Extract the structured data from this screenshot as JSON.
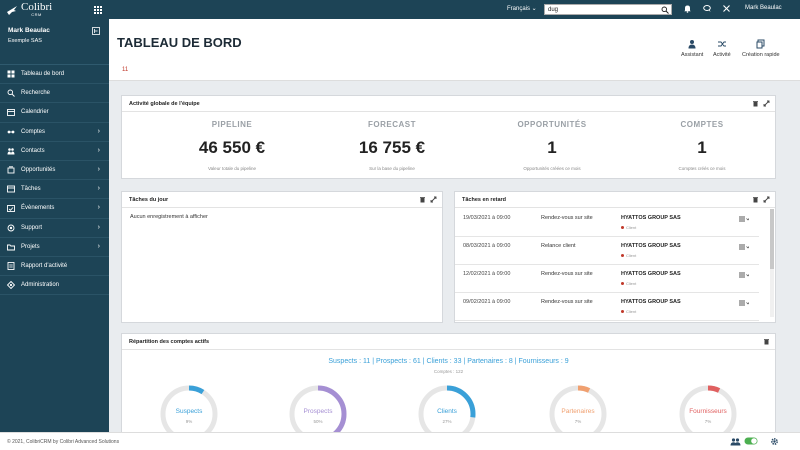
{
  "app": {
    "name": "Colibri",
    "sub": "CRM"
  },
  "topbar": {
    "language": "Français",
    "search_value": "dug",
    "user": "Mark Beaulac"
  },
  "sidebar": {
    "user_name": "Mark Beaulac",
    "company": "Exemple SAS",
    "items": [
      {
        "label": "Tableau de bord",
        "icon": "dashboard-icon",
        "chevron": false
      },
      {
        "label": "Recherche",
        "icon": "search-icon",
        "chevron": false
      },
      {
        "label": "Calendrier",
        "icon": "calendar-icon",
        "chevron": false
      },
      {
        "label": "Comptes",
        "icon": "accounts-icon",
        "chevron": true
      },
      {
        "label": "Contacts",
        "icon": "contacts-icon",
        "chevron": true
      },
      {
        "label": "Opportunités",
        "icon": "opportunities-icon",
        "chevron": true
      },
      {
        "label": "Tâches",
        "icon": "tasks-icon",
        "chevron": true
      },
      {
        "label": "Évènements",
        "icon": "events-icon",
        "chevron": true
      },
      {
        "label": "Support",
        "icon": "support-icon",
        "chevron": true
      },
      {
        "label": "Projets",
        "icon": "projects-icon",
        "chevron": true
      },
      {
        "label": "Rapport d'activité",
        "icon": "report-icon",
        "chevron": false
      },
      {
        "label": "Administration",
        "icon": "admin-icon",
        "chevron": false
      }
    ]
  },
  "main": {
    "title": "TABLEAU DE BORD",
    "quick_actions": [
      "Assistant",
      "Activité",
      "Création rapide"
    ],
    "tab_number": "11"
  },
  "activity_panel": {
    "title": "Activité globale de l'équipe",
    "kpis": [
      {
        "label": "PIPELINE",
        "value": "46 550 €",
        "sub": "Valeur totale du pipeline"
      },
      {
        "label": "FORECAST",
        "value": "16 755 €",
        "sub": "Sur la base du pipeline"
      },
      {
        "label": "OPPORTUNITÉS",
        "value": "1",
        "sub": "Opportunités créées ce mois"
      },
      {
        "label": "COMPTES",
        "value": "1",
        "sub": "Comptes créés ce mois"
      }
    ]
  },
  "tasks_today": {
    "title": "Tâches du jour",
    "empty": "Aucun enregistrement à afficher"
  },
  "tasks_late": {
    "title": "Tâches en retard",
    "rows": [
      {
        "date": "19/03/2021 à 09:00",
        "task": "Rendez-vous sur site",
        "company": "HYATTOS GROUP SAS",
        "status": "Client"
      },
      {
        "date": "08/03/2021 à 09:00",
        "task": "Relance client",
        "company": "HYATTOS GROUP SAS",
        "status": "Client"
      },
      {
        "date": "12/02/2021 à 09:00",
        "task": "Rendez-vous sur site",
        "company": "HYATTOS GROUP SAS",
        "status": "Client"
      },
      {
        "date": "09/02/2021 à 09:00",
        "task": "Rendez-vous sur site",
        "company": "HYATTOS GROUP SAS",
        "status": "Client"
      }
    ]
  },
  "repartition": {
    "title": "Répartition des comptes actifs",
    "summary_parts": [
      "Suspects : 11",
      "Prospects : 61",
      "Clients : 33",
      "Partenaires : 8",
      "Fournisseurs : 9"
    ],
    "total": "Comptes : 122",
    "donuts": [
      {
        "label": "Suspects",
        "pct": "9%",
        "value": 0.09,
        "color": "#3aa0d8"
      },
      {
        "label": "Prospects",
        "pct": "50%",
        "value": 0.5,
        "color": "#a58fd3"
      },
      {
        "label": "Clients",
        "pct": "27%",
        "value": 0.27,
        "color": "#3aa0d8"
      },
      {
        "label": "Partenaires",
        "pct": "7%",
        "value": 0.07,
        "color": "#f0a070"
      },
      {
        "label": "Fournisseurs",
        "pct": "7%",
        "value": 0.07,
        "color": "#e06060"
      }
    ]
  },
  "footer": {
    "text": "© 2021, ColibriCRM by Colibri Advanced Solutions"
  }
}
